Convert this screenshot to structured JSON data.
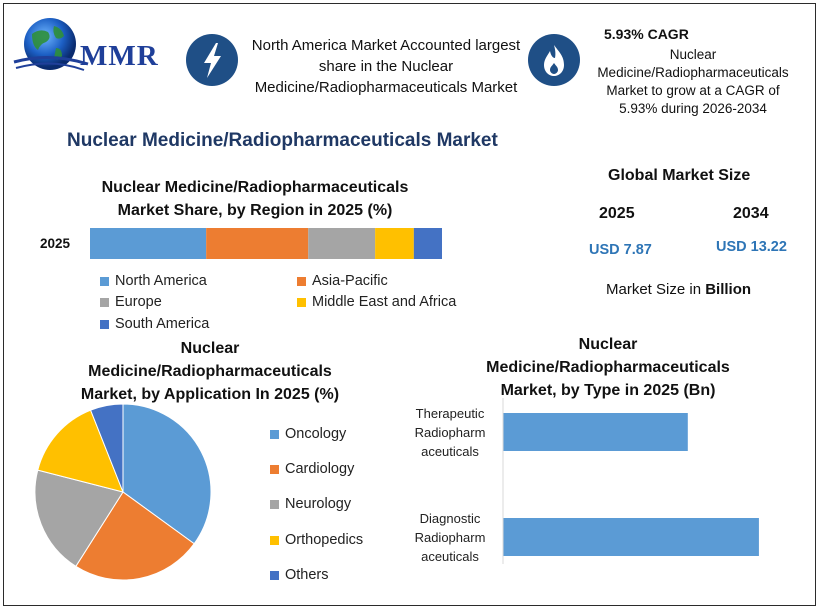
{
  "logo": {
    "text": "MMR"
  },
  "highlights": [
    {
      "icon": "lightning-icon",
      "text": "North America Market Accounted largest share in the Nuclear Medicine/Radiopharmaceuticals Market"
    },
    {
      "icon": "flame-icon",
      "title": "5.93% CAGR",
      "text": "Nuclear Medicine/Radiopharmaceuticals Market to grow at a CAGR of 5.93% during 2026-2034"
    }
  ],
  "main_title": "Nuclear Medicine/Radiopharmaceuticals Market",
  "market_size": {
    "title": "Global Market Size",
    "years": [
      "2025",
      "2034"
    ],
    "values": [
      "USD 7.87",
      "USD 13.22"
    ],
    "note_prefix": "Market Size in ",
    "note_bold": "Billion"
  },
  "colors": {
    "blue": "#5b9bd5",
    "orange": "#ed7d31",
    "gray": "#a5a5a5",
    "yellow": "#ffc000",
    "dark_blue": "#4472c4",
    "title_navy": "#1f3864",
    "value_blue": "#2e75b6"
  },
  "chart_data": [
    {
      "type": "bar",
      "stacked": true,
      "orientation": "horizontal",
      "title": "Nuclear Medicine/Radiopharmaceuticals Market Share, by Region in 2025 (%)",
      "categories": [
        "2025"
      ],
      "series": [
        {
          "name": "North America",
          "values": [
            33
          ],
          "color": "#5b9bd5"
        },
        {
          "name": "Asia-Pacific",
          "values": [
            29
          ],
          "color": "#ed7d31"
        },
        {
          "name": "Europe",
          "values": [
            19
          ],
          "color": "#a5a5a5"
        },
        {
          "name": "Middle East and Africa",
          "values": [
            11
          ],
          "color": "#ffc000"
        },
        {
          "name": "South America",
          "values": [
            8
          ],
          "color": "#4472c4"
        }
      ],
      "legend": "bottom"
    },
    {
      "type": "pie",
      "title": "Nuclear Medicine/Radiopharmaceuticals Market, by Application In 2025 (%)",
      "labels": [
        "Oncology",
        "Cardiology",
        "Neurology",
        "Orthopedics",
        "Others"
      ],
      "values": [
        35,
        24,
        20,
        15,
        6
      ],
      "colors": [
        "#5b9bd5",
        "#ed7d31",
        "#a5a5a5",
        "#ffc000",
        "#4472c4"
      ],
      "legend": "right"
    },
    {
      "type": "bar",
      "orientation": "horizontal",
      "title": "Nuclear Medicine/Radiopharmaceuticals Market, by Type in 2025 (Bn)",
      "categories": [
        "Therapeutic Radiopharmaceuticals",
        "Diagnostic Radiopharmaceuticals"
      ],
      "category_lines": [
        [
          "Therapeutic",
          "Radiopharm",
          "aceuticals"
        ],
        [
          "Diagnostic",
          "Radiopharm",
          "aceuticals"
        ]
      ],
      "values": [
        3.3,
        4.57
      ],
      "color": "#5b9bd5"
    }
  ]
}
